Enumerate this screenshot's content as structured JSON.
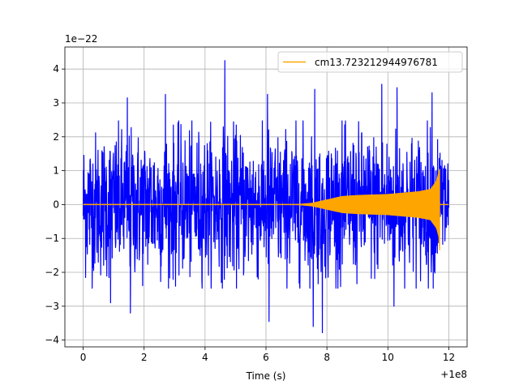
{
  "chart_data": {
    "type": "line",
    "title": "",
    "xlabel": "Time (s)",
    "ylabel": "",
    "x_offset_label": "+1e8",
    "y_scale_label": "1e−22",
    "xlim": [
      -0.6,
      12.6
    ],
    "ylim": [
      -4.2,
      4.65
    ],
    "xticks": [
      0,
      2,
      4,
      6,
      8,
      10,
      12
    ],
    "xtick_labels": [
      "0",
      "2",
      "4",
      "6",
      "8",
      "10",
      "12"
    ],
    "yticks": [
      -4,
      -3,
      -2,
      -1,
      0,
      1,
      2,
      3,
      4
    ],
    "ytick_labels": [
      "−4",
      "−3",
      "−2",
      "−1",
      "0",
      "1",
      "2",
      "3",
      "4"
    ],
    "grid": true,
    "legend": {
      "placement": "top-right",
      "entries": [
        "cm13.723212944976781"
      ]
    },
    "series": [
      {
        "role": "noisy strain data",
        "color": "#0000ff",
        "x_range": [
          0,
          12
        ],
        "typical_amplitude": [
          -1.9,
          1.9
        ],
        "extremes": [
          {
            "x": 4.65,
            "y": 4.25
          },
          {
            "x": 1.45,
            "y": 3.15
          },
          {
            "x": 2.7,
            "y": 3.25
          },
          {
            "x": 9.8,
            "y": 3.55
          },
          {
            "x": 10.3,
            "y": 3.45
          },
          {
            "x": 7.6,
            "y": 3.4
          },
          {
            "x": 6.05,
            "y": 3.25
          },
          {
            "x": 11.45,
            "y": 3.3
          },
          {
            "x": 1.55,
            "y": -3.2
          },
          {
            "x": 6.1,
            "y": -3.45
          },
          {
            "x": 7.55,
            "y": -3.6
          },
          {
            "x": 7.85,
            "y": -3.78
          },
          {
            "x": 10.2,
            "y": -3.0
          },
          {
            "x": 0.9,
            "y": -2.9
          }
        ]
      },
      {
        "name": "cm13.723212944976781",
        "role": "chirp waveform",
        "color": "#ffa500",
        "x_range": [
          0,
          12
        ],
        "merger_time": 11.7,
        "envelope": [
          {
            "x": 0,
            "y": 0.0
          },
          {
            "x": 7.0,
            "y": 0.0
          },
          {
            "x": 7.5,
            "y": 0.04
          },
          {
            "x": 8.0,
            "y": 0.14
          },
          {
            "x": 8.5,
            "y": 0.24
          },
          {
            "x": 9.0,
            "y": 0.27
          },
          {
            "x": 10.0,
            "y": 0.3
          },
          {
            "x": 11.0,
            "y": 0.38
          },
          {
            "x": 11.4,
            "y": 0.45
          },
          {
            "x": 11.6,
            "y": 0.7
          },
          {
            "x": 11.7,
            "y": 1.05
          }
        ],
        "min_at_merger": -1.35
      }
    ]
  }
}
